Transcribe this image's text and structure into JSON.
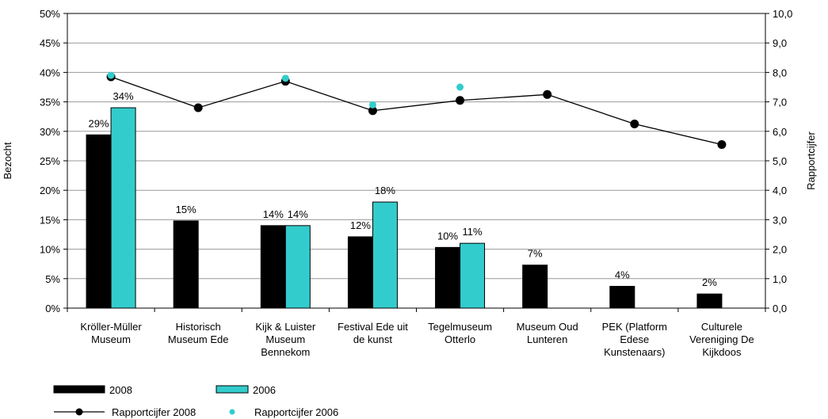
{
  "chart_data": {
    "type": "bar",
    "categories": [
      "Kröller-Müller\nMuseum",
      "Historisch\nMuseum Ede",
      "Kijk & Luister\nMuseum\nBennekom",
      "Festival Ede uit\nde kunst",
      "Tegelmuseum\nOtterlo",
      "Museum Oud\nLunteren",
      "PEK (Platform\nEdese\nKunstenaars)",
      "Culturele\nVereniging De\nKijkdoos"
    ],
    "series": [
      {
        "name": "2008",
        "type": "bar",
        "color": "#000000",
        "values": [
          29.4,
          14.8,
          14,
          12.1,
          10.3,
          7.3,
          3.7,
          2.4
        ],
        "value_labels": [
          "29%",
          "15%",
          "14%",
          "12%",
          "10%",
          "7%",
          "4%",
          "2%"
        ]
      },
      {
        "name": "2006",
        "type": "bar",
        "color": "#33cccc",
        "values": [
          34,
          null,
          14,
          18,
          11,
          null,
          null,
          null
        ],
        "value_labels": [
          "34%",
          null,
          "14%",
          "18%",
          "11%",
          null,
          null,
          null
        ]
      },
      {
        "name": "Rapportcijfer 2008",
        "type": "line",
        "axis": "y2",
        "color": "#000000",
        "values": [
          7.85,
          6.8,
          7.7,
          6.7,
          7.05,
          7.25,
          6.25,
          5.55
        ]
      },
      {
        "name": "Rapportcijfer 2006",
        "type": "scatter",
        "axis": "y2",
        "color": "#33cccc",
        "values": [
          7.9,
          null,
          7.8,
          6.9,
          7.5,
          null,
          null,
          null
        ]
      }
    ],
    "ylabel": "Bezocht",
    "y2label": "Rapportcijfer",
    "ylim": [
      0,
      50
    ],
    "yticks": [
      {
        "value": 0,
        "label": "0%"
      },
      {
        "value": 5,
        "label": "5%"
      },
      {
        "value": 10,
        "label": "10%"
      },
      {
        "value": 15,
        "label": "15%"
      },
      {
        "value": 20,
        "label": "20%"
      },
      {
        "value": 25,
        "label": "25%"
      },
      {
        "value": 30,
        "label": "30%"
      },
      {
        "value": 35,
        "label": "35%"
      },
      {
        "value": 40,
        "label": "40%"
      },
      {
        "value": 45,
        "label": "45%"
      },
      {
        "value": 50,
        "label": "50%"
      }
    ],
    "y2lim": [
      0,
      10
    ],
    "y2ticks": [
      {
        "value": 0,
        "label": "0,0"
      },
      {
        "value": 1,
        "label": "1,0"
      },
      {
        "value": 2,
        "label": "2,0"
      },
      {
        "value": 3,
        "label": "3,0"
      },
      {
        "value": 4,
        "label": "4,0"
      },
      {
        "value": 5,
        "label": "5,0"
      },
      {
        "value": 6,
        "label": "6,0"
      },
      {
        "value": 7,
        "label": "7,0"
      },
      {
        "value": 8,
        "label": "8,0"
      },
      {
        "value": 9,
        "label": "9,0"
      },
      {
        "value": 10,
        "label": "10,0"
      }
    ],
    "grid": true,
    "legend": "bottom-left"
  }
}
